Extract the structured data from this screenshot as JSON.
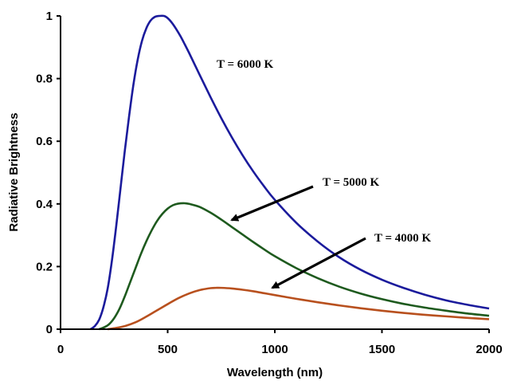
{
  "chart_data": {
    "type": "line",
    "xlabel": "Wavelength (nm)",
    "ylabel": "Radiative Brightness",
    "xlim": [
      0,
      2000
    ],
    "ylim": [
      0,
      1
    ],
    "xticks": [
      "0",
      "500",
      "1000",
      "1500",
      "2000"
    ],
    "yticks": [
      "0",
      "0.2",
      "0.4",
      "0.6",
      "0.8",
      "1"
    ],
    "grid": false,
    "legend": "none",
    "series": [
      {
        "temperature_K": 6000,
        "color": "#1b1b9c",
        "x": [
          140,
          160,
          180,
          200,
          220,
          240,
          260,
          280,
          300,
          320,
          340,
          360,
          380,
          400,
          420,
          440,
          460,
          483,
          500,
          520,
          540,
          560,
          580,
          600,
          650,
          700,
          750,
          800,
          850,
          900,
          950,
          1000,
          1100,
          1200,
          1300,
          1400,
          1500,
          1600,
          1700,
          1800,
          1900,
          2000
        ],
        "values": [
          0.0,
          0.01,
          0.03,
          0.07,
          0.13,
          0.22,
          0.33,
          0.45,
          0.57,
          0.68,
          0.78,
          0.86,
          0.92,
          0.96,
          0.985,
          0.997,
          1.0,
          1.0,
          0.993,
          0.978,
          0.958,
          0.935,
          0.909,
          0.882,
          0.811,
          0.741,
          0.674,
          0.612,
          0.555,
          0.503,
          0.456,
          0.413,
          0.34,
          0.28,
          0.23,
          0.19,
          0.158,
          0.132,
          0.11,
          0.092,
          0.078,
          0.066
        ]
      },
      {
        "temperature_K": 5000,
        "color": "#1e5a1e",
        "x": [
          180,
          200,
          225,
          250,
          275,
          300,
          325,
          350,
          375,
          400,
          425,
          450,
          475,
          500,
          525,
          550,
          580,
          600,
          650,
          700,
          750,
          800,
          850,
          900,
          950,
          1000,
          1100,
          1200,
          1300,
          1400,
          1500,
          1600,
          1700,
          1800,
          1900,
          2000
        ],
        "values": [
          0.0,
          0.005,
          0.015,
          0.035,
          0.065,
          0.105,
          0.15,
          0.195,
          0.24,
          0.28,
          0.315,
          0.345,
          0.368,
          0.385,
          0.396,
          0.401,
          0.402,
          0.4,
          0.39,
          0.372,
          0.35,
          0.326,
          0.302,
          0.278,
          0.255,
          0.233,
          0.195,
          0.163,
          0.136,
          0.114,
          0.096,
          0.081,
          0.069,
          0.059,
          0.05,
          0.043
        ]
      },
      {
        "temperature_K": 4000,
        "color": "#b8501e",
        "x": [
          220,
          250,
          300,
          350,
          400,
          450,
          500,
          550,
          600,
          650,
          700,
          725,
          750,
          800,
          850,
          900,
          950,
          1000,
          1100,
          1200,
          1300,
          1400,
          1500,
          1600,
          1700,
          1800,
          1900,
          2000
        ],
        "values": [
          0.0,
          0.003,
          0.01,
          0.022,
          0.04,
          0.06,
          0.08,
          0.099,
          0.114,
          0.125,
          0.131,
          0.132,
          0.132,
          0.13,
          0.126,
          0.121,
          0.115,
          0.109,
          0.097,
          0.086,
          0.076,
          0.067,
          0.059,
          0.052,
          0.046,
          0.041,
          0.036,
          0.032
        ]
      }
    ],
    "annotations": [
      {
        "text": "T = 6000 K"
      },
      {
        "text": "T = 5000 K"
      },
      {
        "text": "T = 4000 K"
      }
    ]
  }
}
